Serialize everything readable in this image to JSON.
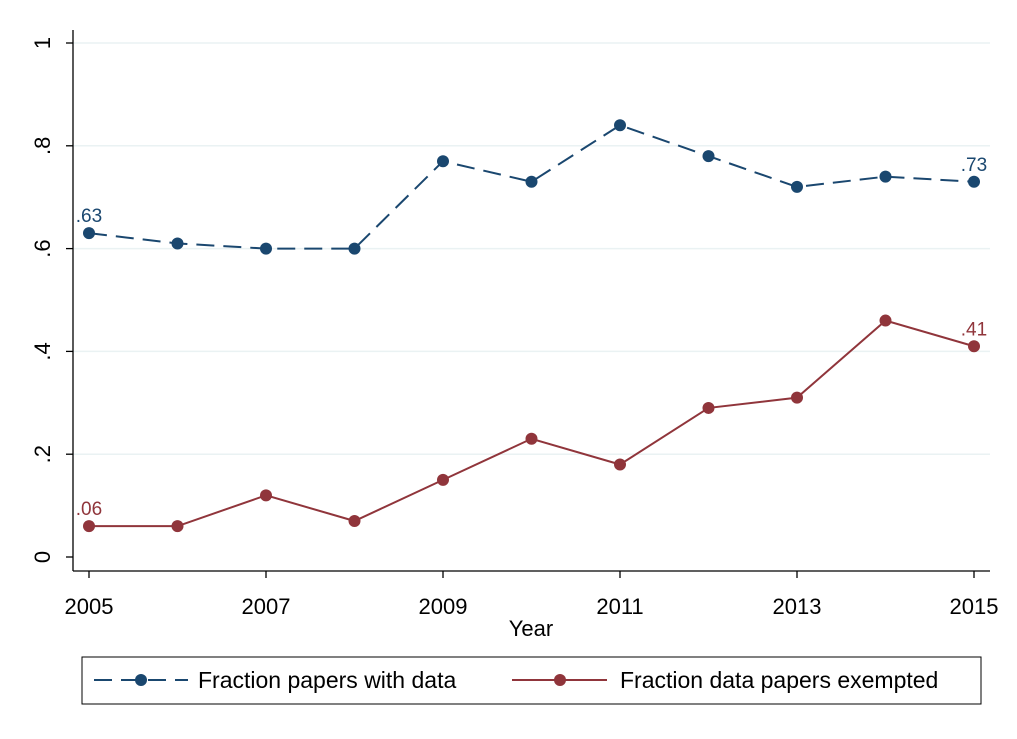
{
  "chart_data": {
    "type": "line",
    "xlabel": "Year",
    "ylabel": "",
    "x": [
      2005,
      2006,
      2007,
      2008,
      2009,
      2010,
      2011,
      2012,
      2013,
      2014,
      2015
    ],
    "xticks": [
      2005,
      2007,
      2009,
      2011,
      2013,
      2015
    ],
    "xlim": [
      2005,
      2015
    ],
    "yticks": [
      0,
      0.2,
      0.4,
      0.6,
      0.8,
      1
    ],
    "ytick_labels": [
      "0",
      ".2",
      ".4",
      ".6",
      ".8",
      "1"
    ],
    "ylim": [
      0,
      1
    ],
    "grid": "horizontal",
    "legend_position": "bottom",
    "series": [
      {
        "name": "Fraction papers with data",
        "color": "#1a476f",
        "line_style": "dashed",
        "values": [
          0.63,
          0.61,
          0.6,
          0.6,
          0.77,
          0.73,
          0.84,
          0.78,
          0.72,
          0.74,
          0.73
        ],
        "labels": [
          {
            "index": 0,
            "text": ".63"
          },
          {
            "index": 10,
            "text": ".73"
          }
        ]
      },
      {
        "name": "Fraction data papers exempted",
        "color": "#90353b",
        "line_style": "solid",
        "values": [
          0.06,
          0.06,
          0.12,
          0.07,
          0.15,
          0.23,
          0.18,
          0.29,
          0.31,
          0.46,
          0.41
        ],
        "labels": [
          {
            "index": 0,
            "text": ".06"
          },
          {
            "index": 10,
            "text": ".41"
          }
        ]
      }
    ]
  }
}
